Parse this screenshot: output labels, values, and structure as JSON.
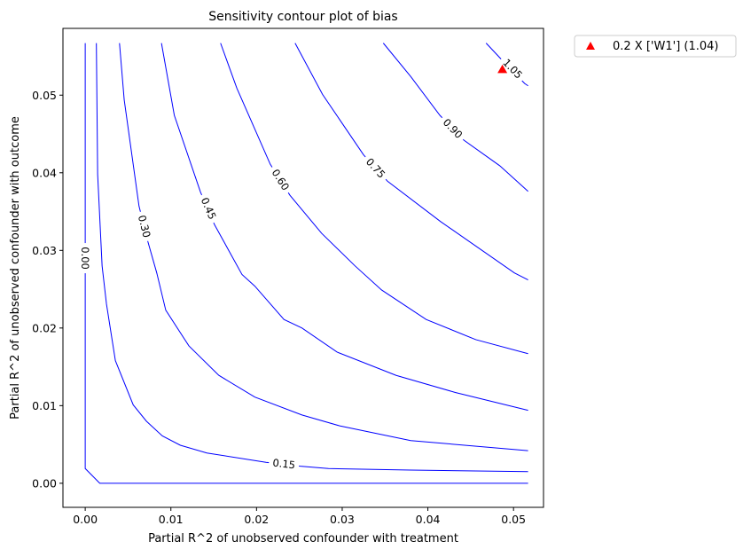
{
  "chart_data": {
    "type": "contour",
    "title": "Sensitivity contour plot of bias",
    "xlabel": "Partial R^2 of unobserved confounder with treatment",
    "ylabel": "Partial R^2 of unobserved confounder with outcome",
    "xlim": [
      -0.0026,
      0.0535
    ],
    "ylim": [
      -0.0031,
      0.0586
    ],
    "xticks": [
      0.0,
      0.01,
      0.02,
      0.03,
      0.04,
      0.05
    ],
    "xtick_labels": [
      "0.00",
      "0.01",
      "0.02",
      "0.03",
      "0.04",
      "0.05"
    ],
    "yticks": [
      0.0,
      0.01,
      0.02,
      0.03,
      0.04,
      0.05
    ],
    "ytick_labels": [
      "0.00",
      "0.01",
      "0.02",
      "0.03",
      "0.04",
      "0.05"
    ],
    "grid": false,
    "line_color": "#0000ff",
    "contours": [
      {
        "level": "0.00",
        "label_at": [
          0.0,
          0.029
        ],
        "points": [
          [
            0,
            0.0567
          ],
          [
            0,
            0.0019
          ],
          [
            0.0017,
            0
          ],
          [
            0.0517,
            0
          ]
        ]
      },
      {
        "level": "0.15",
        "label_at": [
          0.0232,
          0.0025
        ],
        "points": [
          [
            0.0013,
            0.0567
          ],
          [
            0.00145,
            0.0398
          ],
          [
            0.00197,
            0.028
          ],
          [
            0.00248,
            0.0231
          ],
          [
            0.00352,
            0.0158
          ],
          [
            0.0056,
            0.0101
          ],
          [
            0.00714,
            0.008
          ],
          [
            0.009,
            0.0061
          ],
          [
            0.0111,
            0.0049
          ],
          [
            0.0142,
            0.0039
          ],
          [
            0.0211,
            0.0027
          ],
          [
            0.0251,
            0.0022
          ],
          [
            0.0284,
            0.0019
          ],
          [
            0.038,
            0.0017
          ],
          [
            0.0517,
            0.0015
          ]
        ]
      },
      {
        "level": "0.30",
        "label_at": [
          0.0069,
          0.0331
        ],
        "points": [
          [
            0.004,
            0.0567
          ],
          [
            0.00455,
            0.0494
          ],
          [
            0.00628,
            0.0357
          ],
          [
            0.00732,
            0.0311
          ],
          [
            0.00835,
            0.0271
          ],
          [
            0.0094,
            0.0223
          ],
          [
            0.0121,
            0.0177
          ],
          [
            0.0156,
            0.0139
          ],
          [
            0.0198,
            0.0111
          ],
          [
            0.0253,
            0.0088
          ],
          [
            0.0297,
            0.0074
          ],
          [
            0.038,
            0.0055
          ],
          [
            0.0517,
            0.0042
          ]
        ]
      },
      {
        "level": "0.45",
        "label_at": [
          0.0144,
          0.0354
        ],
        "points": [
          [
            0.0089,
            0.0567
          ],
          [
            0.0104,
            0.0474
          ],
          [
            0.01346,
            0.0375
          ],
          [
            0.0151,
            0.0333
          ],
          [
            0.0183,
            0.0269
          ],
          [
            0.0198,
            0.0254
          ],
          [
            0.0232,
            0.0211
          ],
          [
            0.0253,
            0.02
          ],
          [
            0.0294,
            0.0169
          ],
          [
            0.0363,
            0.0139
          ],
          [
            0.0432,
            0.0117
          ],
          [
            0.0517,
            0.0094
          ]
        ]
      },
      {
        "level": "0.60",
        "label_at": [
          0.0228,
          0.0391
        ],
        "points": [
          [
            0.0158,
            0.0567
          ],
          [
            0.0177,
            0.0509
          ],
          [
            0.0216,
            0.0411
          ],
          [
            0.0239,
            0.0371
          ],
          [
            0.0276,
            0.0322
          ],
          [
            0.0315,
            0.028
          ],
          [
            0.0346,
            0.0249
          ],
          [
            0.0398,
            0.0211
          ],
          [
            0.0456,
            0.0185
          ],
          [
            0.0517,
            0.0167
          ]
        ]
      },
      {
        "level": "0.75",
        "label_at": [
          0.0339,
          0.0406
        ],
        "points": [
          [
            0.0245,
            0.0567
          ],
          [
            0.0277,
            0.0501
          ],
          [
            0.0325,
            0.0423
          ],
          [
            0.0353,
            0.0389
          ],
          [
            0.0415,
            0.0337
          ],
          [
            0.0501,
            0.0271
          ],
          [
            0.0517,
            0.0262
          ]
        ]
      },
      {
        "level": "0.90",
        "label_at": [
          0.0429,
          0.0457
        ],
        "points": [
          [
            0.0348,
            0.0567
          ],
          [
            0.038,
            0.0524
          ],
          [
            0.0414,
            0.0474
          ],
          [
            0.0442,
            0.0442
          ],
          [
            0.0484,
            0.0409
          ],
          [
            0.0517,
            0.0376
          ]
        ]
      },
      {
        "level": "1.05",
        "label_at": [
          0.0499,
          0.0534
        ],
        "points": [
          [
            0.0468,
            0.0567
          ],
          [
            0.0485,
            0.0547
          ],
          [
            0.0513,
            0.0515
          ],
          [
            0.0517,
            0.0512
          ]
        ]
      }
    ],
    "marker": {
      "x": 0.0487,
      "y": 0.0533,
      "shape": "triangle",
      "color": "#ff0000"
    },
    "legend": {
      "placement": "outside-top-right",
      "entries": [
        {
          "label": "0.2 X ['W1'] (1.04)",
          "marker": "triangle",
          "color": "#ff0000"
        }
      ]
    }
  }
}
